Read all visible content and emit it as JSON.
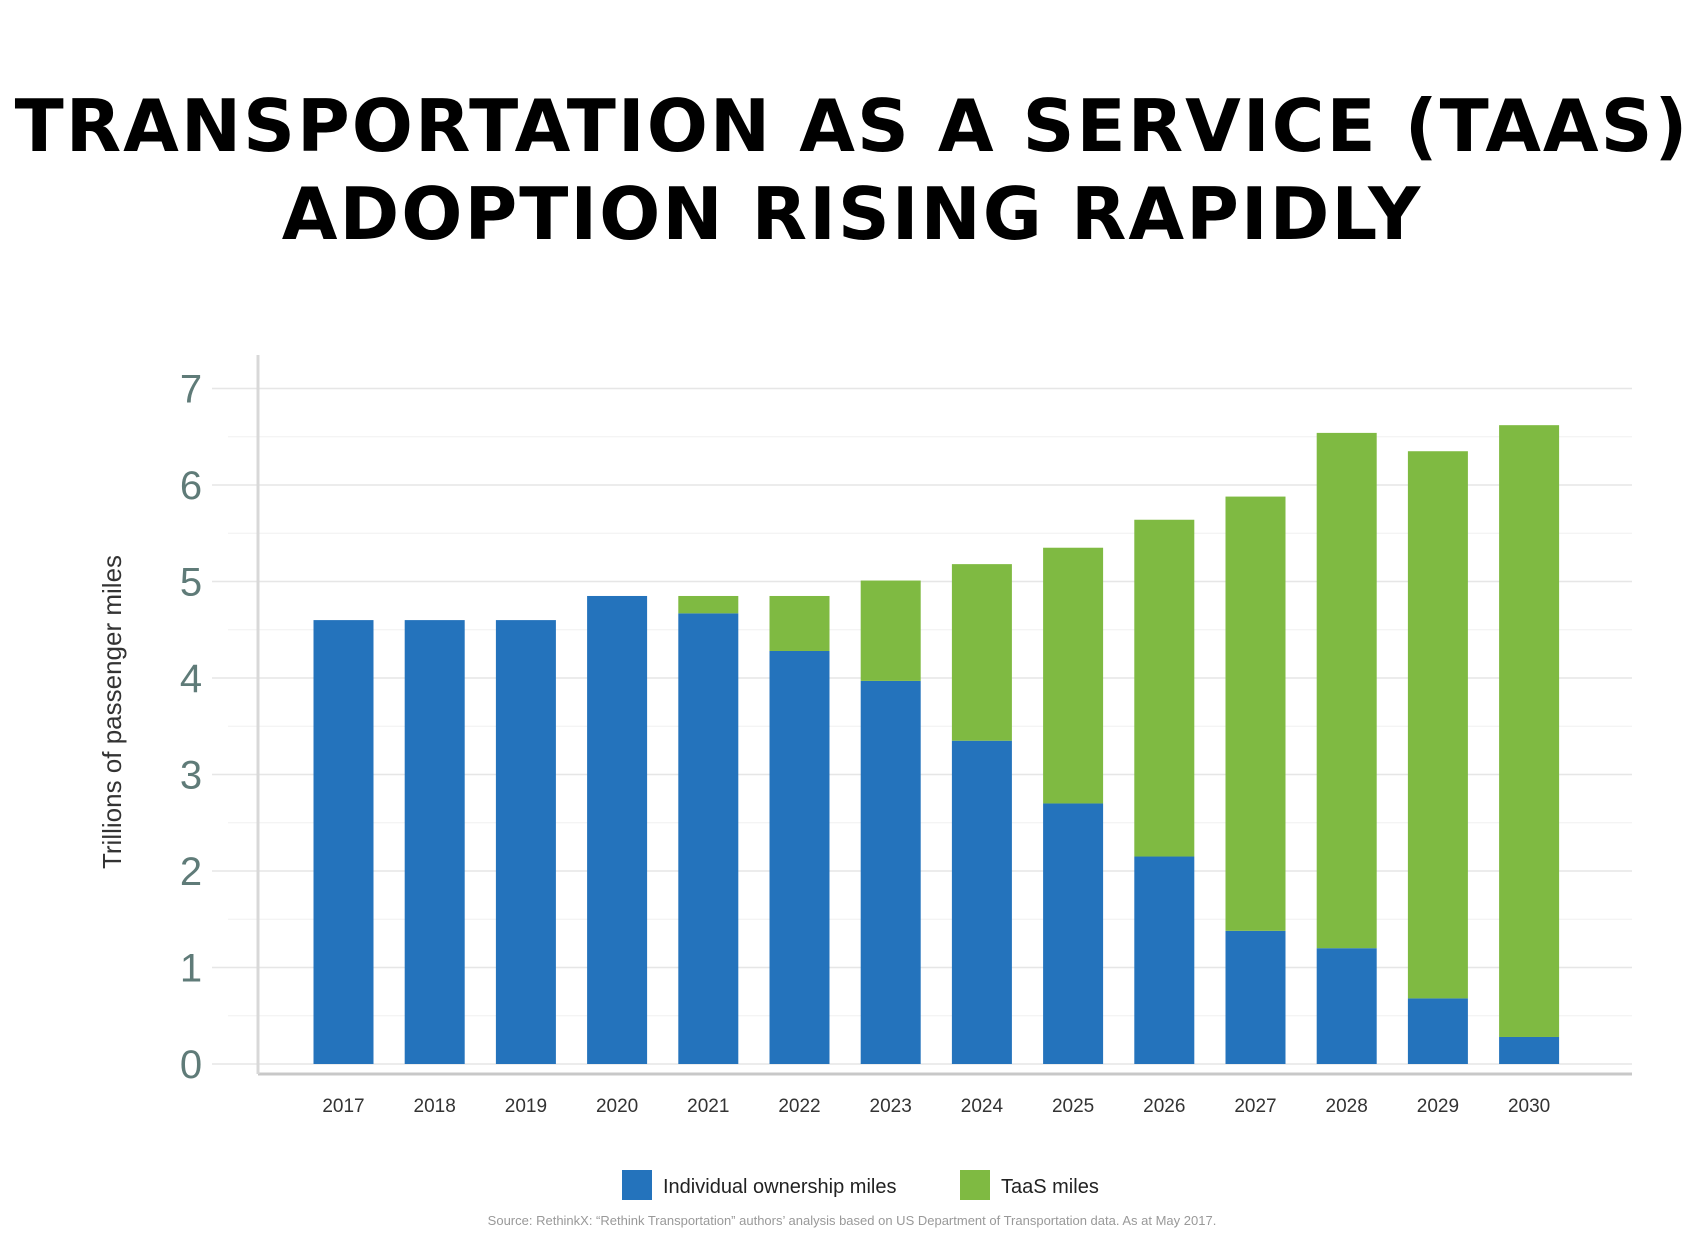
{
  "chart_data": {
    "type": "bar",
    "stacked": true,
    "title": "TRANSPORTATION AS A SERVICE (TAAS) ADOPTION RISING RAPIDLY",
    "title_lines": [
      "TRANSPORTATION AS A SERVICE (TAAS)",
      "ADOPTION RISING RAPIDLY"
    ],
    "ylabel": "Trillions of passenger miles",
    "xlabel": "",
    "ylim": [
      0,
      7
    ],
    "yticks": [
      "0",
      "1",
      "2",
      "3",
      "4",
      "5",
      "6",
      "7"
    ],
    "grid": true,
    "legend_position": "bottom",
    "categories": [
      "2017",
      "2018",
      "2019",
      "2020",
      "2021",
      "2022",
      "2023",
      "2024",
      "2025",
      "2026",
      "2027",
      "2028",
      "2029",
      "2030"
    ],
    "series": [
      {
        "name": "Individual ownership miles",
        "color": "#2473bc",
        "values": [
          4.6,
          4.6,
          4.6,
          4.85,
          4.67,
          4.28,
          3.97,
          3.35,
          2.7,
          2.15,
          1.38,
          1.2,
          0.68,
          0.28
        ]
      },
      {
        "name": "TaaS miles",
        "color": "#7fba42",
        "values": [
          0,
          0,
          0,
          0,
          0.18,
          0.57,
          1.04,
          1.83,
          2.65,
          3.49,
          4.5,
          5.34,
          5.67,
          6.34
        ]
      }
    ]
  },
  "source": "Source: RethinkX: “Rethink Transportation” authors’ analysis based on US Department of Transportation data. As at May 2017."
}
